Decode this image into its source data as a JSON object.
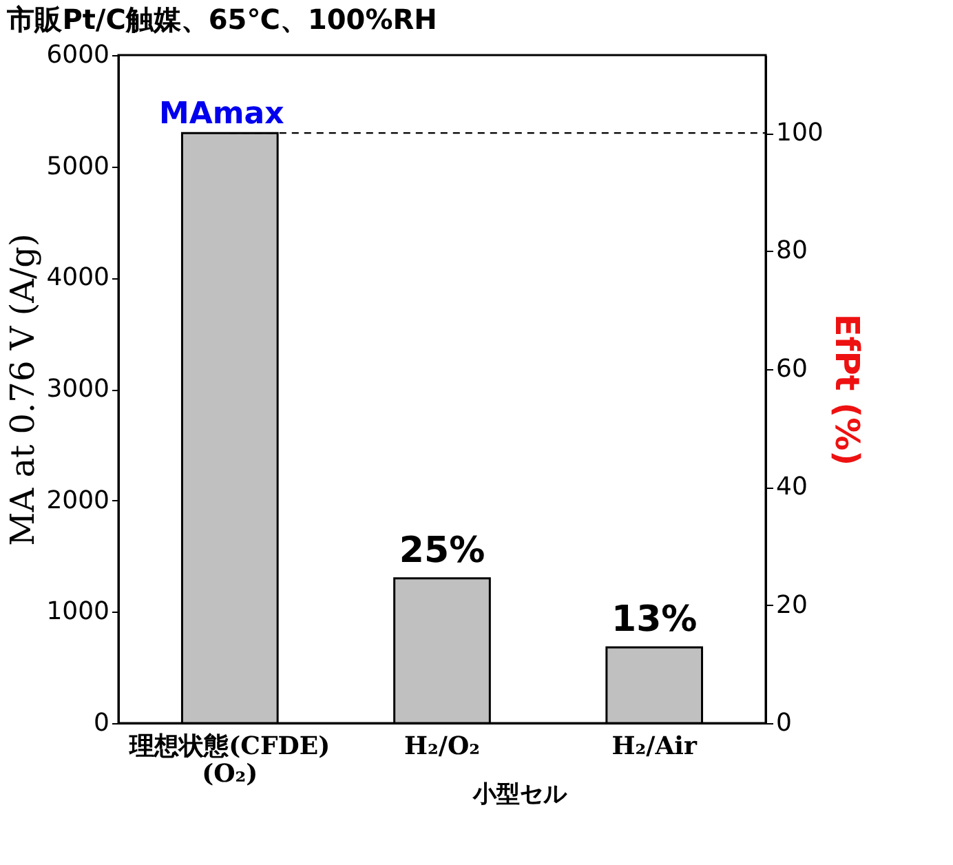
{
  "chart_data": {
    "type": "bar",
    "title": "市販Pt/C触媒、65℃、100%RH",
    "categories": [
      "理想状態(CFDE)\n(O₂)",
      "H₂/O₂",
      "H₂/Air"
    ],
    "values": [
      5300,
      1300,
      680
    ],
    "color": "#c0c0c0",
    "ylabel": "MA at 0.76 V (A/g)",
    "y2label": "EfPt (%)",
    "ylim": [
      0,
      6000
    ],
    "yticks": [
      0,
      1000,
      2000,
      3000,
      4000,
      5000,
      6000
    ],
    "y2lim": [
      0,
      113.2
    ],
    "y2ticks": [
      0,
      20,
      40,
      60,
      80,
      100
    ],
    "ref_lines": [
      {
        "axis": "y",
        "value": 5300,
        "label": "MAmax",
        "color": "#000000",
        "line_style": "dashed"
      }
    ],
    "annotations": [
      "小型セル",
      {
        "text": "25%",
        "x": "H₂/O₂",
        "y": 1300
      },
      {
        "text": "13%",
        "x": "H₂/Air",
        "y": 680
      }
    ],
    "grid": false
  }
}
